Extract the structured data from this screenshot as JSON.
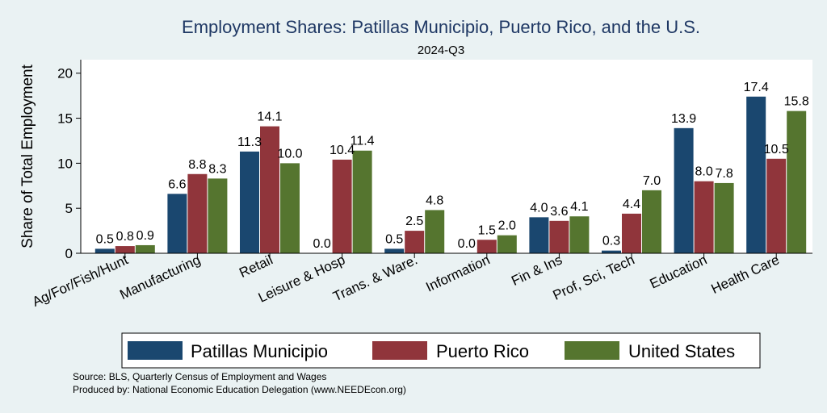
{
  "chart_data": {
    "type": "bar",
    "title": "Employment Shares: Patillas Municipio, Puerto Rico, and the U.S.",
    "subtitle": "2024-Q3",
    "xlabel": "",
    "ylabel": "Share of Total Employment",
    "ylim": [
      0,
      21.5
    ],
    "yticks": [
      0,
      5,
      10,
      15,
      20
    ],
    "categories": [
      "Ag/For/Fish/Hunt",
      "Manufacturing",
      "Retail",
      "Leisure & Hosp",
      "Trans. & Ware.",
      "Information",
      "Fin & Ins",
      "Prof, Sci, Tech",
      "Education",
      "Health Care"
    ],
    "series": [
      {
        "name": "Patillas Municipio",
        "color": "#1a476f",
        "values": [
          0.5,
          6.6,
          11.3,
          0.0,
          0.5,
          0.0,
          4.0,
          0.3,
          13.9,
          17.4
        ],
        "labels": [
          "0.5",
          "6.6",
          "11.3",
          "0.0",
          "0.5",
          "0.0",
          "4.0",
          "0.3",
          "13.9",
          "17.4"
        ]
      },
      {
        "name": "Puerto Rico",
        "color": "#90353b",
        "values": [
          0.8,
          8.8,
          14.1,
          10.4,
          2.5,
          1.5,
          3.6,
          4.4,
          8.0,
          10.5
        ],
        "labels": [
          "0.8",
          "8.8",
          "14.1",
          "10.4",
          "2.5",
          "1.5",
          "3.6",
          "4.4",
          "8.0",
          "10.5"
        ]
      },
      {
        "name": "United States",
        "color": "#55752f",
        "values": [
          0.9,
          8.3,
          10.0,
          11.4,
          4.8,
          2.0,
          4.1,
          7.0,
          7.8,
          15.8
        ],
        "labels": [
          "0.9",
          "8.3",
          "10.0",
          "11.4",
          "4.8",
          "2.0",
          "4.1",
          "7.0",
          "7.8",
          "15.8"
        ]
      }
    ],
    "grid": false,
    "legend": "bottom",
    "notes": [
      "Source: BLS, Quarterly Census of Employment and Wages",
      "Produced by: National Economic Education Delegation (www.NEEDEcon.org)"
    ]
  }
}
